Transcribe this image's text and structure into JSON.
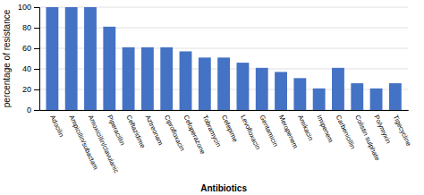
{
  "chart_data": {
    "type": "bar",
    "categories": [
      "Adocilin",
      "Ampicillin/subactam",
      "Amoxicillin/clavulanic",
      "Piperacillin",
      "Ceftazidime",
      "Aztreonam",
      "Ciprofloxacin",
      "Cefoperazone",
      "Tobramycin",
      "Cefepime",
      "Levofloxacin",
      "Gentamicin",
      "Meropenem",
      "Amikacin",
      "Imipenem",
      "Carbenicillin",
      "Colistin sulphate",
      "Polymyxin",
      "Tigecycline"
    ],
    "values": [
      100,
      100,
      100,
      81,
      61,
      61,
      61,
      57,
      51,
      51,
      46,
      41,
      37,
      31,
      21,
      41,
      26,
      21,
      26
    ],
    "color": "#4472c4",
    "xlabel": "Antibiotics",
    "ylabel": "percentage of resistance",
    "ylim": [
      0,
      100
    ],
    "yticks": [
      0,
      20,
      40,
      60,
      80,
      100
    ],
    "grid": true
  }
}
